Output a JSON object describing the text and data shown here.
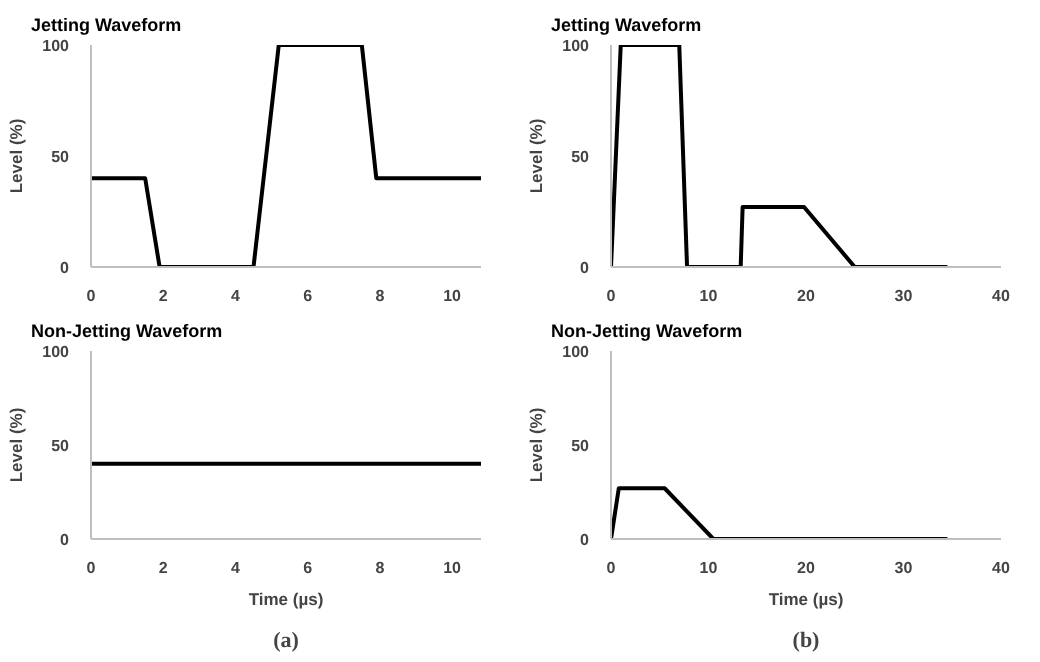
{
  "chart_data": [
    {
      "type": "line",
      "title": "Jetting Waveform",
      "ylabel": "Level (%)",
      "x": [
        0,
        1.5,
        1.9,
        4.5,
        5.2,
        7.5,
        7.9,
        10.8
      ],
      "series": [
        {
          "color": "#000000",
          "values": [
            40,
            40,
            0,
            0,
            100,
            100,
            40,
            40
          ]
        }
      ],
      "xlim": [
        0,
        10.8
      ],
      "ylim": [
        0,
        100
      ],
      "xticks": [
        0,
        2,
        4,
        6,
        8,
        10
      ],
      "yticks": [
        0,
        50,
        100
      ],
      "grid": false,
      "marker": "none",
      "line_style": "solid"
    },
    {
      "type": "line",
      "title": "Jetting Waveform",
      "ylabel": "Level (%)",
      "x": [
        0,
        1,
        7,
        7.8,
        13.3,
        13.5,
        19.8,
        25,
        34.5
      ],
      "series": [
        {
          "color": "#000000",
          "values": [
            0,
            100,
            100,
            0,
            0,
            27,
            27,
            0,
            0
          ]
        }
      ],
      "xlim": [
        0,
        40
      ],
      "ylim": [
        0,
        100
      ],
      "xticks": [
        0,
        10,
        20,
        30,
        40
      ],
      "yticks": [
        0,
        50,
        100
      ],
      "grid": false,
      "marker": "none",
      "line_style": "solid"
    },
    {
      "type": "line",
      "title": "Non-Jetting Waveform",
      "xlabel": "Time (µs)",
      "ylabel": "Level (%)",
      "annotations": [
        "(a)"
      ],
      "x": [
        0,
        10.8
      ],
      "series": [
        {
          "color": "#000000",
          "values": [
            40,
            40
          ]
        }
      ],
      "xlim": [
        0,
        10.8
      ],
      "ylim": [
        0,
        100
      ],
      "xticks": [
        0,
        2,
        4,
        6,
        8,
        10
      ],
      "yticks": [
        0,
        50,
        100
      ],
      "grid": false,
      "marker": "none",
      "line_style": "solid"
    },
    {
      "type": "line",
      "title": "Non-Jetting Waveform",
      "xlabel": "Time (µs)",
      "ylabel": "Level (%)",
      "annotations": [
        "(b)"
      ],
      "x": [
        0,
        0.8,
        5.5,
        10.5,
        34.5
      ],
      "series": [
        {
          "color": "#000000",
          "values": [
            0,
            27,
            27,
            0,
            0
          ]
        }
      ],
      "xlim": [
        0,
        40
      ],
      "ylim": [
        0,
        100
      ],
      "xticks": [
        0,
        10,
        20,
        30,
        40
      ],
      "yticks": [
        0,
        50,
        100
      ],
      "grid": false,
      "marker": "none",
      "line_style": "solid"
    }
  ]
}
